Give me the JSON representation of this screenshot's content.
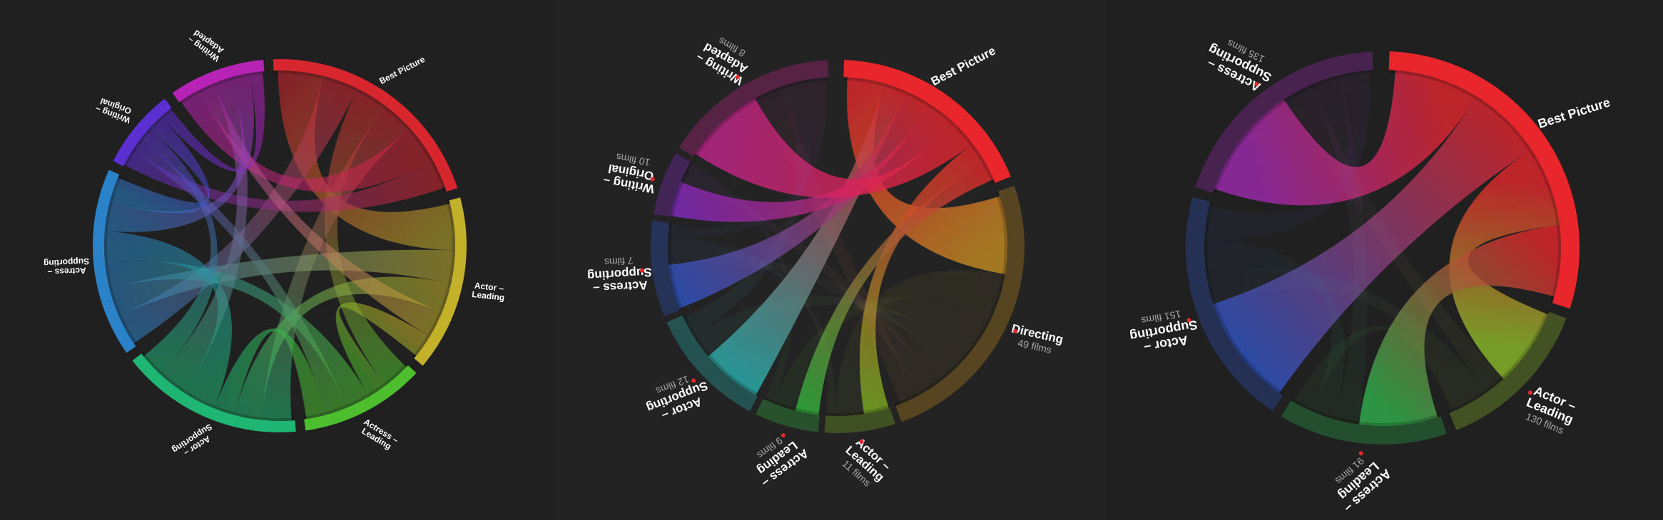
{
  "panels": [
    {
      "id": "panel-1",
      "segments": [
        {
          "key": "bp",
          "label": [
            "Best Picture"
          ],
          "sub": "",
          "color": "#d7262e",
          "a0": -2,
          "a1": 72
        },
        {
          "key": "acl",
          "label": [
            "Actor –",
            "Leading"
          ],
          "sub": "",
          "color": "#c4b12a",
          "a0": 75,
          "a1": 130
        },
        {
          "key": "asl",
          "label": [
            "Actress –",
            "Leading"
          ],
          "sub": "",
          "color": "#4dbf2f",
          "a0": 133,
          "a1": 172
        },
        {
          "key": "acs",
          "label": [
            "Actor –",
            "Supporting"
          ],
          "sub": "",
          "color": "#1fb673",
          "a0": 175,
          "a1": 232
        },
        {
          "key": "ass",
          "label": [
            "Actress –",
            "Supporting"
          ],
          "sub": "",
          "color": "#2a82c9",
          "a0": 235,
          "a1": 294
        },
        {
          "key": "wo",
          "label": [
            "Writing –",
            "Original"
          ],
          "sub": "",
          "color": "#5b2fd0",
          "a0": 297,
          "a1": 322
        },
        {
          "key": "wa",
          "label": [
            "Writing –",
            "Adapted"
          ],
          "sub": "",
          "color": "#b723b5",
          "a0": 325,
          "a1": 355
        }
      ],
      "ribbons": [
        [
          "bp",
          "acl",
          0.7
        ],
        [
          "bp",
          "ass",
          0.55
        ],
        [
          "bp",
          "asl",
          0.5
        ],
        [
          "bp",
          "acs",
          0.5
        ],
        [
          "bp",
          "wa",
          0.6
        ],
        [
          "bp",
          "wo",
          0.45
        ],
        [
          "acl",
          "ass",
          0.5
        ],
        [
          "acl",
          "acs",
          0.45
        ],
        [
          "acl",
          "wa",
          0.4
        ],
        [
          "acl",
          "asl",
          0.35
        ],
        [
          "asl",
          "ass",
          0.45
        ],
        [
          "asl",
          "wo",
          0.4
        ],
        [
          "asl",
          "acs",
          0.35
        ],
        [
          "acs",
          "ass",
          0.55
        ],
        [
          "acs",
          "wa",
          0.5
        ],
        [
          "acs",
          "wo",
          0.4
        ],
        [
          "ass",
          "wa",
          0.5
        ],
        [
          "ass",
          "wo",
          0.45
        ],
        [
          "wo",
          "wa",
          0.35
        ]
      ]
    },
    {
      "id": "panel-2",
      "segments": [
        {
          "key": "bp",
          "label": [
            "Best Picture"
          ],
          "sub": "",
          "color": "#e8262c",
          "a0": 2,
          "a1": 68
        },
        {
          "key": "dir",
          "label": [
            "Directing"
          ],
          "sub": "49 films",
          "color": "#c88f22",
          "a0": 71,
          "a1": 160
        },
        {
          "key": "acl",
          "label": [
            "Actor –",
            "Leading"
          ],
          "sub": "11 films",
          "color": "#7db022",
          "a0": 162,
          "a1": 184
        },
        {
          "key": "asl",
          "label": [
            "Actress –",
            "Leading"
          ],
          "sub": "9 films",
          "color": "#31b93e",
          "a0": 186,
          "a1": 206
        },
        {
          "key": "acs",
          "label": [
            "Actor –",
            "Supporting"
          ],
          "sub": "12 films",
          "color": "#28b6b5",
          "a0": 208,
          "a1": 246
        },
        {
          "key": "ass",
          "label": [
            "Actress –",
            "Supporting"
          ],
          "sub": "7 films",
          "color": "#3056c9",
          "a0": 248,
          "a1": 278
        },
        {
          "key": "wo",
          "label": [
            "Writing –",
            "Original"
          ],
          "sub": "10 films",
          "color": "#8629c4",
          "a0": 280,
          "a1": 300
        },
        {
          "key": "wa",
          "label": [
            "Writing –",
            "Adapted"
          ],
          "sub": "8 films",
          "color": "#c5248f",
          "a0": 302,
          "a1": 357
        }
      ],
      "ribbons": [
        [
          "bp",
          "dir",
          0.95
        ],
        [
          "bp",
          "acs",
          0.6
        ],
        [
          "bp",
          "ass",
          0.7
        ],
        [
          "bp",
          "wo",
          0.75
        ],
        [
          "bp",
          "wa",
          0.7
        ],
        [
          "bp",
          "acl",
          0.55
        ],
        [
          "bp",
          "asl",
          0.5
        ],
        [
          "dir",
          "acl",
          0.6
        ],
        [
          "dir",
          "asl",
          0.5
        ],
        [
          "dir",
          "acs",
          0.25
        ],
        [
          "dir",
          "ass",
          0.25
        ],
        [
          "dir",
          "wo",
          0.25
        ],
        [
          "dir",
          "wa",
          0.25
        ],
        [
          "acl",
          "ass",
          0.2
        ],
        [
          "asl",
          "wo",
          0.2
        ],
        [
          "acs",
          "wa",
          0.2
        ],
        [
          "ass",
          "wa",
          0.18
        ]
      ],
      "highlight": [
        "bp"
      ]
    },
    {
      "id": "panel-3",
      "segments": [
        {
          "key": "bp",
          "label": [
            "Best Picture"
          ],
          "sub": "",
          "color": "#e8262c",
          "a0": 2,
          "a1": 108
        },
        {
          "key": "acl",
          "label": [
            "Actor –",
            "Leading"
          ],
          "sub": "130 films",
          "color": "#8fbf2a",
          "a0": 111,
          "a1": 158
        },
        {
          "key": "asl",
          "label": [
            "Actress –",
            "Leading"
          ],
          "sub": "91 films",
          "color": "#2fb54e",
          "a0": 161,
          "a1": 211
        },
        {
          "key": "acs",
          "label": [
            "Actor –",
            "Supporting"
          ],
          "sub": "151 films",
          "color": "#2e56c8",
          "a0": 214,
          "a1": 285
        },
        {
          "key": "ass",
          "label": [
            "Actress –",
            "Supporting"
          ],
          "sub": "135 films",
          "color": "#a22bb5",
          "a0": 288,
          "a1": 357
        }
      ],
      "ribbons": [
        [
          "bp",
          "ass",
          0.95
        ],
        [
          "bp",
          "acs",
          0.85
        ],
        [
          "bp",
          "acl",
          0.9
        ],
        [
          "bp",
          "asl",
          0.8
        ],
        [
          "acl",
          "ass",
          0.25
        ],
        [
          "acl",
          "acs",
          0.25
        ],
        [
          "asl",
          "ass",
          0.25
        ],
        [
          "asl",
          "acs",
          0.25
        ],
        [
          "acs",
          "ass",
          0.25
        ],
        [
          "acl",
          "asl",
          0.2
        ]
      ],
      "highlight": [
        "bp"
      ]
    }
  ]
}
